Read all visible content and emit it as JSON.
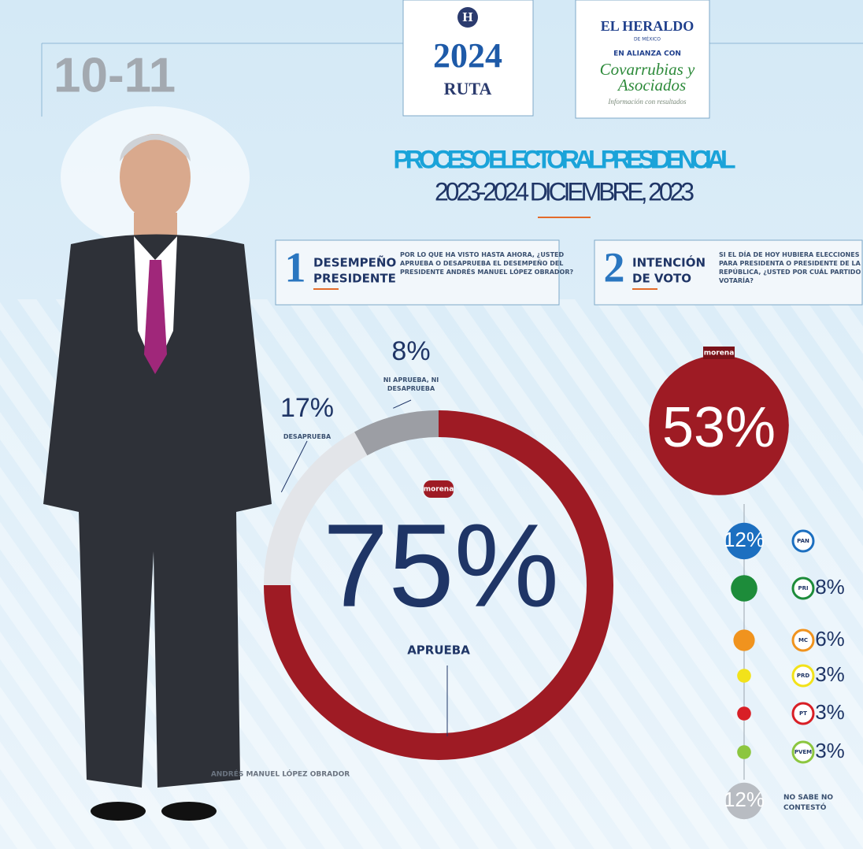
{
  "page_number": "10-11",
  "logo": {
    "letter": "H",
    "year": "2024",
    "name": "RUTA"
  },
  "partner": {
    "brand": "EL HERALDO",
    "sub": "DE MÉXICO",
    "alliance": "EN ALIANZA CON",
    "name1": "Covarrubias y",
    "name2": "Asociados",
    "tagline": "Información con resultados"
  },
  "title": "PROCESO ELECTORAL PRESIDENCIAL",
  "subtitle": "2023-2024 DICIEMBRE, 2023",
  "person": "ANDRÉS MANUEL LÓPEZ OBRADOR",
  "chart_data": [
    {
      "type": "donut",
      "number": "1",
      "heading1": "DESEMPEÑO",
      "heading2": "PRESIDENTE",
      "question": "POR LO QUE HA VISTO HASTA AHORA, ¿USTED APRUEBA O DESAPRUEBA EL DESEMPEÑO DEL PRESIDENTE ANDRÉS MANUEL LÓPEZ OBRADOR?",
      "logo": "morena",
      "categories": [
        "APRUEBA",
        "DESAPRUEBA",
        "NI APRUEBA, NI DESAPRUEBA"
      ],
      "values": [
        75,
        17,
        8
      ],
      "value_labels": [
        "75%",
        "17%",
        "8%"
      ],
      "colors": [
        "#9e1b24",
        "#e3e5e9",
        "#9c9ea4"
      ]
    },
    {
      "type": "bubble",
      "number": "2",
      "heading1": "INTENCIÓN",
      "heading2": "DE VOTO",
      "question": "SI EL DÍA DE HOY HUBIERA ELECCIONES PARA PRESIDENTA O PRESIDENTE DE LA REPÚBLICA, ¿USTED POR CUÁL PARTIDO VOTARÍA?",
      "categories": [
        "morena",
        "PAN",
        "PRI",
        "MC",
        "PRD",
        "PT",
        "PVEM",
        "NO SABE NO CONTESTÓ"
      ],
      "values": [
        53,
        12,
        8,
        6,
        3,
        3,
        3,
        12
      ],
      "value_labels": [
        "53%",
        "12%",
        "8%",
        "6%",
        "3%",
        "3%",
        "3%",
        "12%"
      ],
      "colors": [
        "#9e1b24",
        "#1c6fc0",
        "#1d8c3a",
        "#f0931e",
        "#f2e21a",
        "#d81f26",
        "#8cc63f",
        "#b8bcc2"
      ]
    }
  ]
}
